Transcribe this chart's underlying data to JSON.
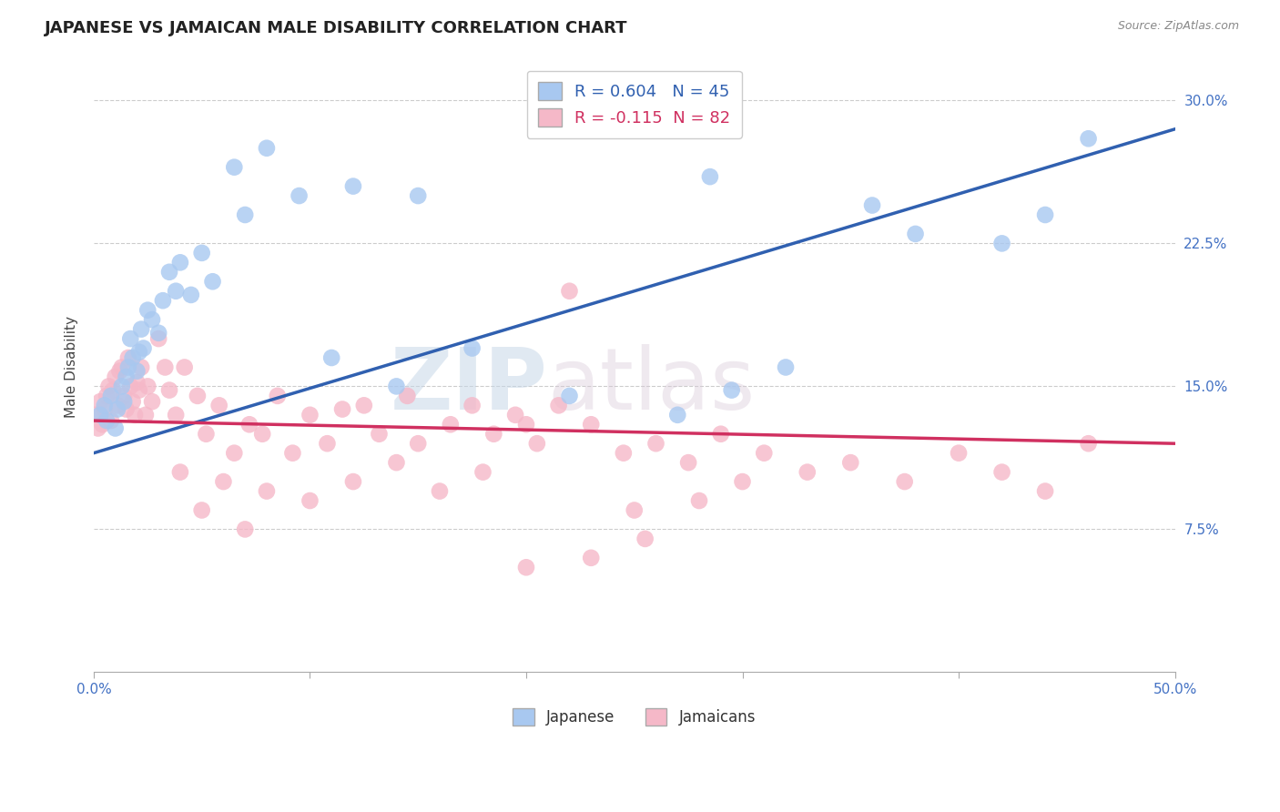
{
  "title": "JAPANESE VS JAMAICAN MALE DISABILITY CORRELATION CHART",
  "source": "Source: ZipAtlas.com",
  "ylabel": "Male Disability",
  "xlim": [
    0.0,
    50.0
  ],
  "ylim": [
    0.0,
    32.0
  ],
  "ytick_vals": [
    7.5,
    15.0,
    22.5,
    30.0
  ],
  "xtick_vals": [
    0.0,
    10.0,
    20.0,
    30.0,
    40.0,
    50.0
  ],
  "xtick_labels": [
    "0.0%",
    "",
    "",
    "",
    "",
    "50.0%"
  ],
  "grid_color": "#cccccc",
  "bg_color": "#ffffff",
  "blue_color": "#a8c8f0",
  "pink_color": "#f5b8c8",
  "blue_line_color": "#3060b0",
  "pink_line_color": "#d03060",
  "R_blue": 0.604,
  "N_blue": 45,
  "R_pink": -0.115,
  "N_pink": 82,
  "watermark": "ZIPatlas",
  "blue_line_start_y": 11.5,
  "blue_line_end_y": 28.5,
  "pink_line_start_y": 13.2,
  "pink_line_end_y": 12.0,
  "blue_scatter_x": [
    0.3,
    0.5,
    0.6,
    0.8,
    1.0,
    1.1,
    1.3,
    1.4,
    1.5,
    1.6,
    1.7,
    1.8,
    2.0,
    2.1,
    2.2,
    2.3,
    2.5,
    2.7,
    3.0,
    3.2,
    3.5,
    3.8,
    4.0,
    4.5,
    5.0,
    5.5,
    6.5,
    7.0,
    8.0,
    9.5,
    11.0,
    12.0,
    14.0,
    15.0,
    17.5,
    22.0,
    27.0,
    28.5,
    29.5,
    32.0,
    36.0,
    38.0,
    42.0,
    44.0,
    46.0
  ],
  "blue_scatter_y": [
    13.5,
    14.0,
    13.2,
    14.5,
    12.8,
    13.8,
    15.0,
    14.2,
    15.5,
    16.0,
    17.5,
    16.5,
    15.8,
    16.8,
    18.0,
    17.0,
    19.0,
    18.5,
    17.8,
    19.5,
    21.0,
    20.0,
    21.5,
    19.8,
    22.0,
    20.5,
    26.5,
    24.0,
    27.5,
    25.0,
    16.5,
    25.5,
    15.0,
    25.0,
    17.0,
    14.5,
    13.5,
    26.0,
    14.8,
    16.0,
    24.5,
    23.0,
    22.5,
    24.0,
    28.0
  ],
  "pink_scatter_x": [
    0.1,
    0.2,
    0.3,
    0.4,
    0.5,
    0.6,
    0.7,
    0.8,
    0.9,
    1.0,
    1.1,
    1.2,
    1.3,
    1.4,
    1.5,
    1.6,
    1.7,
    1.8,
    1.9,
    2.0,
    2.1,
    2.2,
    2.4,
    2.5,
    2.7,
    3.0,
    3.3,
    3.5,
    3.8,
    4.2,
    4.8,
    5.2,
    5.8,
    6.5,
    7.2,
    7.8,
    8.5,
    9.2,
    10.0,
    10.8,
    11.5,
    12.5,
    13.2,
    14.5,
    15.0,
    16.5,
    17.5,
    18.5,
    19.5,
    20.5,
    21.5,
    23.0,
    24.5,
    26.0,
    27.5,
    29.0,
    31.0,
    33.0,
    35.0,
    37.5,
    40.0,
    42.0,
    44.0,
    46.0,
    4.0,
    6.0,
    8.0,
    10.0,
    12.0,
    14.0,
    16.0,
    18.0,
    20.0,
    22.0,
    25.0,
    28.0,
    30.0,
    5.0,
    7.0,
    20.0,
    23.0,
    25.5
  ],
  "pink_scatter_y": [
    13.5,
    12.8,
    14.2,
    13.0,
    13.8,
    14.5,
    15.0,
    13.2,
    14.8,
    15.5,
    14.0,
    15.8,
    16.0,
    14.5,
    13.8,
    16.5,
    15.0,
    14.2,
    13.5,
    15.2,
    14.8,
    16.0,
    13.5,
    15.0,
    14.2,
    17.5,
    16.0,
    14.8,
    13.5,
    16.0,
    14.5,
    12.5,
    14.0,
    11.5,
    13.0,
    12.5,
    14.5,
    11.5,
    13.5,
    12.0,
    13.8,
    14.0,
    12.5,
    14.5,
    12.0,
    13.0,
    14.0,
    12.5,
    13.5,
    12.0,
    14.0,
    13.0,
    11.5,
    12.0,
    11.0,
    12.5,
    11.5,
    10.5,
    11.0,
    10.0,
    11.5,
    10.5,
    9.5,
    12.0,
    10.5,
    10.0,
    9.5,
    9.0,
    10.0,
    11.0,
    9.5,
    10.5,
    13.0,
    20.0,
    8.5,
    9.0,
    10.0,
    8.5,
    7.5,
    5.5,
    6.0,
    7.0
  ]
}
